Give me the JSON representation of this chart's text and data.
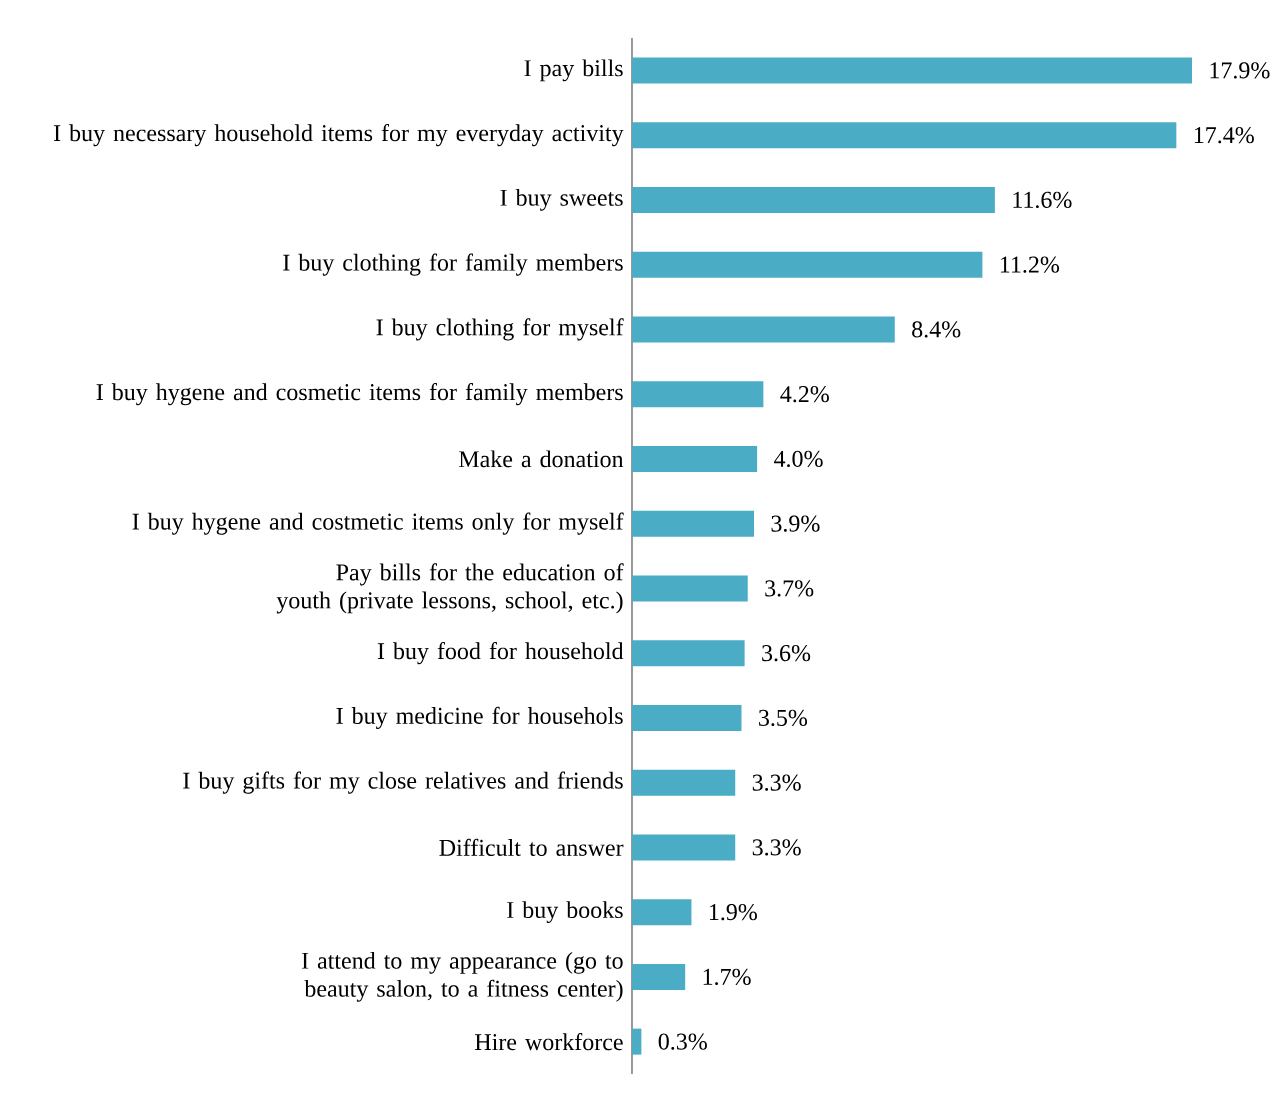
{
  "chart_data": {
    "type": "bar",
    "orientation": "horizontal",
    "color": "#4bacc6",
    "categories": [
      "I pay bills",
      "I buy necessary household items for my everyday activity",
      "I buy sweets",
      "I buy clothing for family members",
      "I buy clothing for myself",
      "I buy hygene and cosmetic items for family members",
      "Make a donation",
      "I buy hygene and costmetic items only for myself",
      "Pay bills for the education of youth (private lessons, school, etc.)",
      "I buy food for household",
      "I buy medicine for househols",
      "I buy gifts for my close relatives and friends",
      "Difficult to answer",
      "I buy books",
      "I attend to my appearance (go to beauty salon, to a fitness center)",
      "Hire workforce"
    ],
    "values": [
      17.9,
      17.4,
      11.6,
      11.2,
      8.4,
      4.2,
      4.0,
      3.9,
      3.7,
      3.6,
      3.5,
      3.3,
      3.3,
      1.9,
      1.7,
      0.3
    ],
    "value_labels": [
      "17.9%",
      "17.4%",
      "11.6%",
      "11.2%",
      "8.4%",
      "4.2%",
      "4.0%",
      "3.9%",
      "3.7%",
      "3.6%",
      "3.5%",
      "3.3%",
      "3.3%",
      "1.9%",
      "1.7%",
      "0.3%"
    ]
  }
}
